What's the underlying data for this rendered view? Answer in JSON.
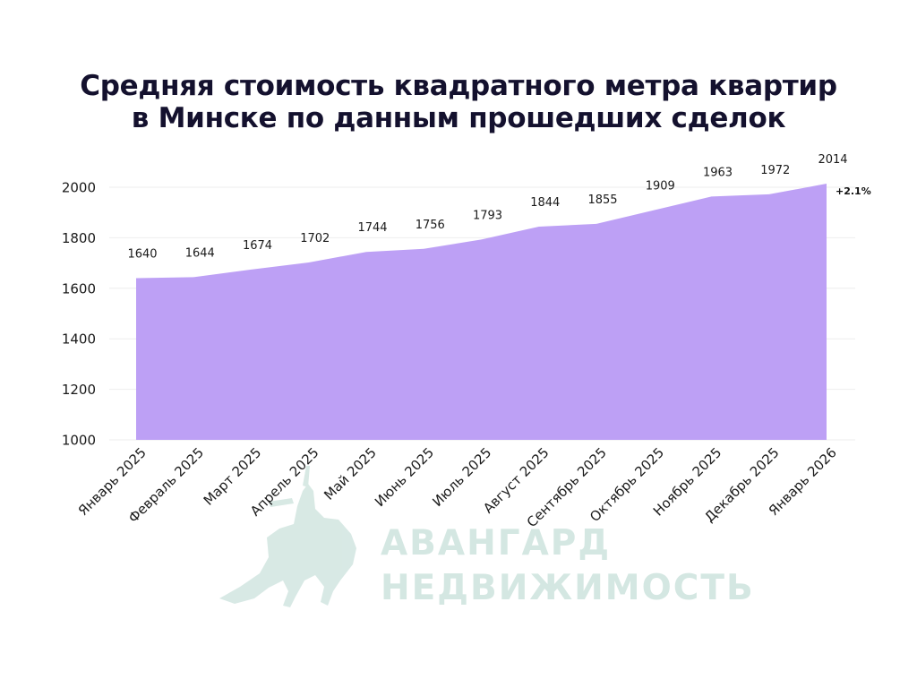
{
  "title": {
    "line1": "Средняя стоимость квадратного метра квартир",
    "line2": "в Минске по данным прошедших сделок"
  },
  "watermark": {
    "line1": "АВАНГАРД",
    "line2": "НЕДВИЖИМОСТЬ"
  },
  "colors": {
    "area": "#bda0f5",
    "title": "#14112e",
    "watermark": "#d4e7e2",
    "grid": "#eeeeee"
  },
  "chart_data": {
    "type": "area",
    "categories": [
      "Январь 2025",
      "Февраль 2025",
      "Март 2025",
      "Апрель 2025",
      "Май 2025",
      "Июнь 2025",
      "Июль 2025",
      "Август 2025",
      "Сентябрь 2025",
      "Октябрь 2025",
      "Ноябрь 2025",
      "Декабрь 2025",
      "Январь 2026"
    ],
    "values": [
      1640,
      1644,
      1674,
      1702,
      1744,
      1756,
      1793,
      1844,
      1855,
      1909,
      1963,
      1972,
      2014
    ],
    "data_labels": [
      "1640",
      "1644",
      "1674",
      "1702",
      "1744",
      "1756",
      "1793",
      "1844",
      "1855",
      "1909",
      "1963",
      "1972",
      "2014"
    ],
    "yticks": [
      1000,
      1200,
      1400,
      1600,
      1800,
      2000
    ],
    "ylim": [
      1000,
      2000
    ],
    "grid": true,
    "annotation": "+2.1%",
    "title": "Средняя стоимость квадратного метра квартир в Минске по данным прошедших сделок",
    "xlabel": "",
    "ylabel": ""
  }
}
